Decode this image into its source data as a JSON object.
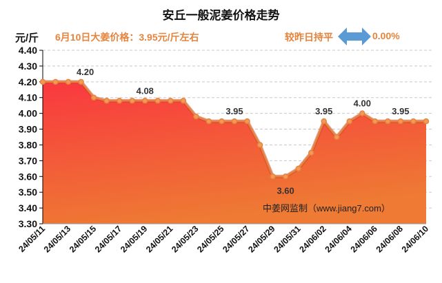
{
  "header": {
    "unit": "元/斤",
    "today_price": "6月10日大姜价格：3.95元/斤左右",
    "compare_label": "较昨日持平",
    "change": "0.00%",
    "arrow_icon": "double-arrow"
  },
  "watermark": "中姜网监制（www.jiang7.com）",
  "chart_data": {
    "type": "area",
    "title": "安丘一般泥姜价格走势",
    "ylabel": "元/斤",
    "ylim": [
      3.3,
      4.4
    ],
    "yticks": [
      "4.40",
      "4.30",
      "4.20",
      "4.10",
      "4.00",
      "3.90",
      "3.80",
      "3.70",
      "3.60",
      "3.50",
      "3.40",
      "3.30"
    ],
    "grid": true,
    "x": [
      "24/05/11",
      "24/05/12",
      "24/05/13",
      "24/05/14",
      "24/05/15",
      "24/05/16",
      "24/05/17",
      "24/05/18",
      "24/05/19",
      "24/05/20",
      "24/05/21",
      "24/05/22",
      "24/05/23",
      "24/05/24",
      "24/05/25",
      "24/05/26",
      "24/05/27",
      "24/05/28",
      "24/05/29",
      "24/05/30",
      "24/05/31",
      "24/06/01",
      "24/06/02",
      "24/06/03",
      "24/06/04",
      "24/06/05",
      "24/06/06",
      "24/06/07",
      "24/06/08",
      "24/06/09",
      "24/06/10"
    ],
    "xtick_labels": [
      "24/05/11",
      "24/05/13",
      "24/05/15",
      "24/05/17",
      "24/05/19",
      "24/05/21",
      "24/05/23",
      "24/05/25",
      "24/05/27",
      "24/05/29",
      "24/05/31",
      "24/06/02",
      "24/06/04",
      "24/06/06",
      "24/06/08",
      "24/06/10"
    ],
    "values": [
      4.2,
      4.2,
      4.2,
      4.2,
      4.1,
      4.08,
      4.08,
      4.08,
      4.08,
      4.08,
      4.08,
      4.08,
      3.98,
      3.95,
      3.95,
      3.95,
      3.95,
      3.8,
      3.6,
      3.6,
      3.65,
      3.75,
      3.95,
      3.85,
      3.95,
      4.0,
      3.95,
      3.95,
      3.95,
      3.95,
      3.95
    ],
    "annotations": [
      {
        "index": 3,
        "text": "4.20",
        "pos": "above"
      },
      {
        "index": 8,
        "text": "4.08",
        "pos": "above"
      },
      {
        "index": 15,
        "text": "3.95",
        "pos": "above"
      },
      {
        "index": 19,
        "text": "3.60",
        "pos": "below"
      },
      {
        "index": 22,
        "text": "3.95",
        "pos": "above"
      },
      {
        "index": 25,
        "text": "4.00",
        "pos": "above"
      },
      {
        "index": 28,
        "text": "3.95",
        "pos": "above"
      }
    ],
    "colors": {
      "fill_top": "#f9383f",
      "fill_bottom": "#ee7a33",
      "line": "#e5843c",
      "marker": "#f0a050"
    }
  }
}
